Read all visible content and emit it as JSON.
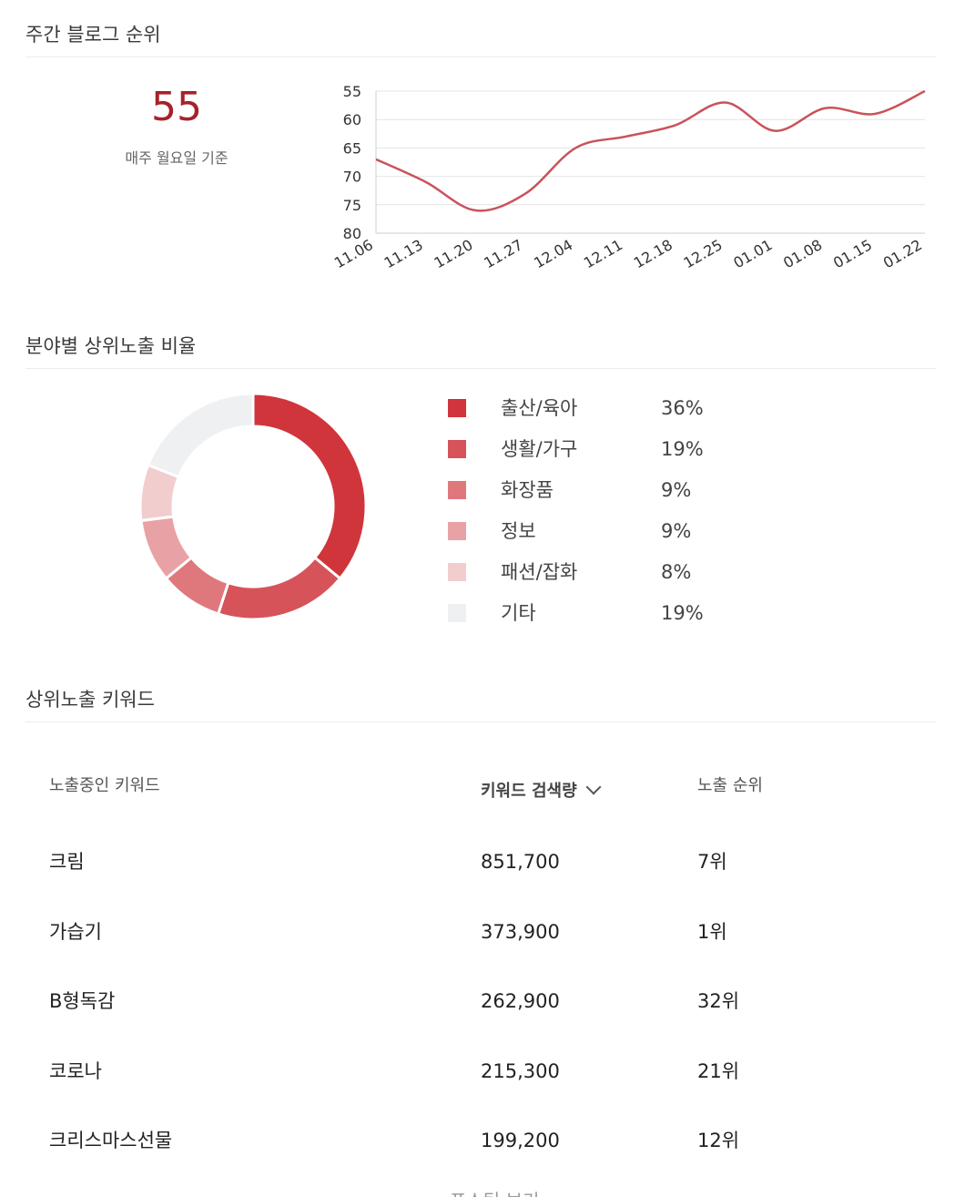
{
  "weekly_rank": {
    "title": "주간 블로그 순위",
    "current_rank": "55",
    "caption": "매주 월요일 기준"
  },
  "chart_data": {
    "type": "line",
    "x": [
      "11.06",
      "11.13",
      "11.20",
      "11.27",
      "12.04",
      "12.11",
      "12.18",
      "12.25",
      "01.01",
      "01.08",
      "01.15",
      "01.22"
    ],
    "series": [
      {
        "values": [
          67,
          71,
          76,
          73,
          65,
          63,
          61,
          57,
          62,
          58,
          59,
          55
        ]
      }
    ],
    "y_ticks": [
      55,
      60,
      65,
      70,
      75,
      80
    ],
    "ylim": [
      80,
      55
    ],
    "y_inverted": true,
    "grid": true,
    "color": "#c9535a"
  },
  "category_ratio": {
    "title": "분야별 상위노출 비율",
    "items": [
      {
        "label": "출산/육아",
        "value": "36%",
        "percent": 36,
        "color": "#cf353b"
      },
      {
        "label": "생활/가구",
        "value": "19%",
        "percent": 19,
        "color": "#d6535a"
      },
      {
        "label": "화장품",
        "value": "9%",
        "percent": 9,
        "color": "#df787d"
      },
      {
        "label": "정보",
        "value": "9%",
        "percent": 9,
        "color": "#e8a2a5"
      },
      {
        "label": "패션/잡화",
        "value": "8%",
        "percent": 8,
        "color": "#f2cdce"
      },
      {
        "label": "기타",
        "value": "19%",
        "percent": 19,
        "color": "#eff0f2"
      }
    ]
  },
  "keywords": {
    "title": "상위노출 키워드",
    "headers": {
      "keyword": "노출중인 키워드",
      "volume": "키워드 검색량",
      "rank": "노출 순위"
    },
    "rows": [
      {
        "keyword": "크림",
        "volume": "851,700",
        "rank": "7위"
      },
      {
        "keyword": "가습기",
        "volume": "373,900",
        "rank": "1위"
      },
      {
        "keyword": "B형독감",
        "volume": "262,900",
        "rank": "32위"
      },
      {
        "keyword": "코로나",
        "volume": "215,300",
        "rank": "21위"
      },
      {
        "keyword": "크리스마스선물",
        "volume": "199,200",
        "rank": "12위"
      }
    ],
    "more_label": "포스팅 보기"
  }
}
